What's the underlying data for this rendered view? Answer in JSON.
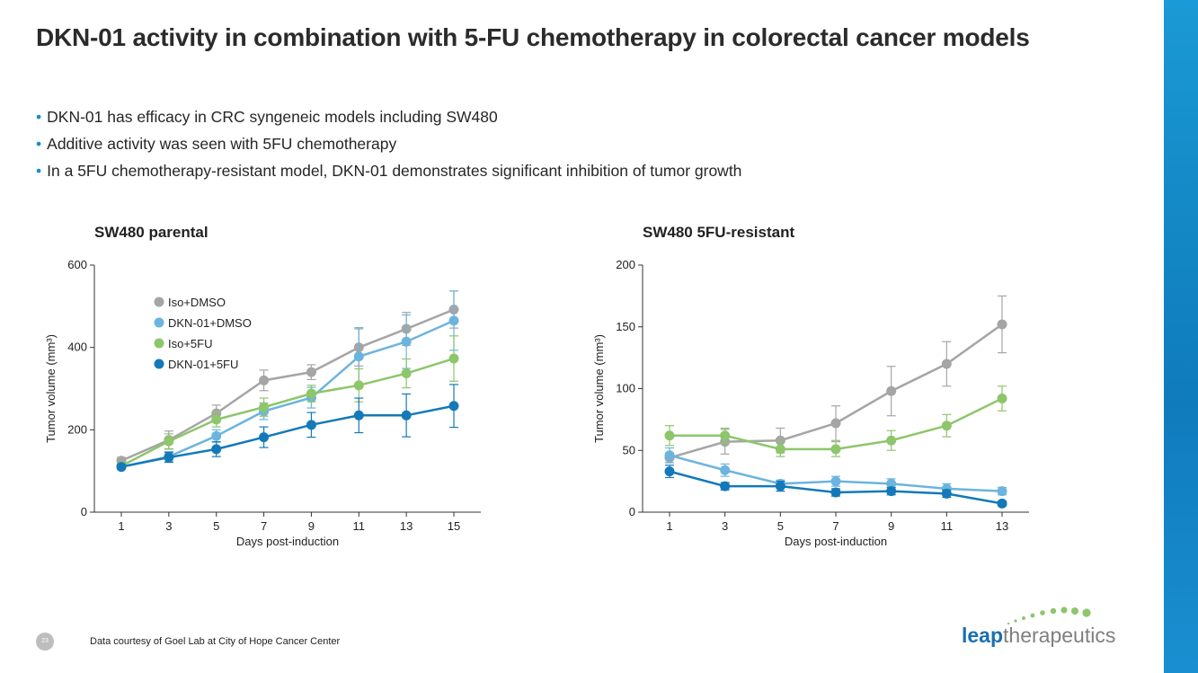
{
  "title": "DKN-01 activity in combination with 5-FU chemotherapy in colorectal cancer models",
  "bullets": [
    "DKN-01 has efficacy in CRC syngeneic models including SW480",
    "Additive activity was seen with 5FU chemotherapy",
    "In a 5FU chemotherapy-resistant model, DKN-01 demonstrates significant inhibition of tumor growth"
  ],
  "colors": {
    "iso_dmso": "#a5a5a5",
    "dkn_dmso": "#6cb4de",
    "iso_5fu": "#8dc66b",
    "dkn_5fu": "#1479b8",
    "accent": "#1a8cc8"
  },
  "chart_data": [
    {
      "type": "line",
      "title": "SW480 parental",
      "xlabel": "Days post-induction",
      "ylabel": "Tumor volume (mm³)",
      "x": [
        1,
        3,
        5,
        7,
        9,
        11,
        13,
        15
      ],
      "xticks": [
        1,
        3,
        5,
        7,
        9,
        11,
        13,
        15
      ],
      "yticks": [
        0,
        200,
        400,
        600
      ],
      "ylim": [
        0,
        600
      ],
      "legend_position": "top-left",
      "series": [
        {
          "name": "Iso+DMSO",
          "color": "#a5a5a5",
          "values": [
            125,
            175,
            240,
            320,
            340,
            400,
            445,
            492
          ],
          "errors": [
            8,
            22,
            20,
            25,
            18,
            45,
            40,
            45
          ]
        },
        {
          "name": "DKN-01+DMSO",
          "color": "#6cb4de",
          "values": [
            110,
            135,
            185,
            245,
            278,
            378,
            414,
            465
          ],
          "errors": [
            6,
            12,
            15,
            20,
            25,
            70,
            65,
            72
          ]
        },
        {
          "name": "Iso+5FU",
          "color": "#8dc66b",
          "values": [
            112,
            172,
            225,
            255,
            288,
            308,
            337,
            373
          ],
          "errors": [
            6,
            18,
            18,
            22,
            20,
            40,
            35,
            55
          ]
        },
        {
          "name": "DKN-01+5FU",
          "color": "#1479b8",
          "values": [
            110,
            133,
            153,
            182,
            212,
            235,
            235,
            258
          ],
          "errors": [
            5,
            12,
            18,
            25,
            30,
            42,
            52,
            52
          ]
        }
      ]
    },
    {
      "type": "line",
      "title": "SW480 5FU-resistant",
      "xlabel": "Days post-induction",
      "ylabel": "Tumor volume (mm³)",
      "x": [
        1,
        3,
        5,
        7,
        9,
        11,
        13
      ],
      "xticks": [
        1,
        3,
        5,
        7,
        9,
        11,
        13
      ],
      "yticks": [
        0,
        50,
        100,
        150,
        200
      ],
      "ylim": [
        0,
        200
      ],
      "series": [
        {
          "name": "Iso+DMSO",
          "color": "#a5a5a5",
          "values": [
            44,
            57,
            58,
            72,
            98,
            120,
            152
          ],
          "errors": [
            4,
            10,
            10,
            14,
            20,
            18,
            23
          ]
        },
        {
          "name": "DKN-01+DMSO",
          "color": "#6cb4de",
          "values": [
            46,
            34,
            23,
            25,
            23,
            19,
            17
          ],
          "errors": [
            6,
            5,
            3,
            4,
            4,
            4,
            3
          ]
        },
        {
          "name": "Iso+5FU",
          "color": "#8dc66b",
          "values": [
            62,
            62,
            51,
            51,
            58,
            70,
            92
          ],
          "errors": [
            8,
            6,
            6,
            6,
            8,
            9,
            10
          ]
        },
        {
          "name": "DKN-01+5FU",
          "color": "#1479b8",
          "values": [
            33,
            21,
            21,
            16,
            17,
            15,
            7
          ],
          "errors": [
            5,
            3,
            4,
            3,
            3,
            3,
            2
          ]
        }
      ]
    }
  ],
  "footer": {
    "page_number": "23",
    "source": "Data courtesy of Goel Lab at City of Hope Cancer Center"
  },
  "logo": {
    "bold": "leap",
    "light": "therapeutics"
  }
}
